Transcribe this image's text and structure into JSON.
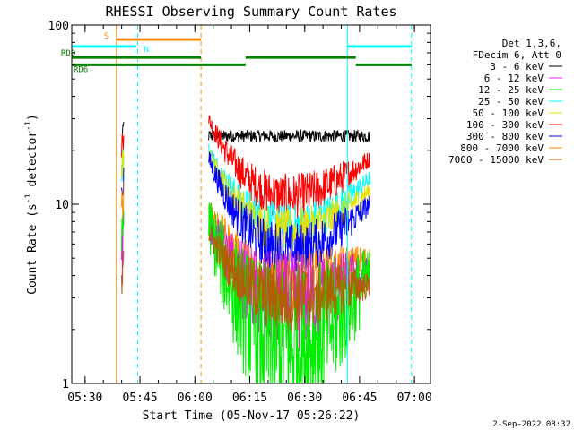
{
  "title": "RHESSI Observing Summary Count Rates",
  "footer_date": "2-Sep-2022 08:32",
  "chart_data": {
    "type": "line",
    "title": "RHESSI Observing Summary Count Rates",
    "ylabel": "Count Rate (s⁻¹ detector⁻¹)",
    "ylabel_parts": {
      "main": "Count Rate (s",
      "exp1": "-1",
      "mid": " detector",
      "exp2": "-1",
      "end": ")"
    },
    "xlabel": "Start Time (05-Nov-17 05:26:22)",
    "y_scale": "log",
    "ylim": [
      1,
      100
    ],
    "xlim_minutes": [
      0,
      98
    ],
    "y_ticks": [
      {
        "value": 1,
        "label": "1"
      },
      {
        "value": 10,
        "label": "10"
      },
      {
        "value": 100,
        "label": "100"
      }
    ],
    "x_ticks": [
      {
        "minute": 3.63,
        "label": "05:30"
      },
      {
        "minute": 18.63,
        "label": "05:45"
      },
      {
        "minute": 33.63,
        "label": "06:00"
      },
      {
        "minute": 48.63,
        "label": "06:15"
      },
      {
        "minute": 63.63,
        "label": "06:30"
      },
      {
        "minute": 78.63,
        "label": "06:45"
      },
      {
        "minute": 93.63,
        "label": "07:00"
      }
    ],
    "legend": {
      "position": "right",
      "header": [
        "Det 1,3,6,",
        "FDecim 6, Att 0"
      ],
      "entries": [
        {
          "label": "3 - 6 keV",
          "color": "#000000"
        },
        {
          "label": "6 - 12 keV",
          "color": "#e020e0"
        },
        {
          "label": "12 - 25 keV",
          "color": "#00ee00"
        },
        {
          "label": "25 - 50 keV",
          "color": "#00ffff"
        },
        {
          "label": "50 - 100 keV",
          "color": "#e8e000"
        },
        {
          "label": "100 - 300 keV",
          "color": "#ff0000"
        },
        {
          "label": "300 - 800 keV",
          "color": "#0000ff"
        },
        {
          "label": "800 - 7000 keV",
          "color": "#ff8c00"
        },
        {
          "label": "7000 - 15000 keV",
          "color": "#b06000"
        }
      ]
    },
    "series": [
      {
        "name": "3 - 6 keV",
        "color": "#000000",
        "ranges": [
          [
            13.6,
            14.2,
            22,
            28
          ],
          [
            37.4,
            81.5,
            24,
            24
          ]
        ],
        "noise": 0.08,
        "shape": "flat"
      },
      {
        "name": "100 - 300 keV",
        "color": "#ff0000",
        "ranges": [
          [
            13.6,
            14.2,
            20,
            26
          ],
          [
            37.4,
            81.5,
            30,
            18
          ]
        ],
        "noise": 0.1,
        "shape": "bowl",
        "min": 11
      },
      {
        "name": "25 - 50 keV",
        "color": "#00ffff",
        "ranges": [
          [
            13.6,
            14.2,
            16,
            18
          ],
          [
            37.4,
            81.5,
            20,
            14
          ]
        ],
        "noise": 0.1,
        "shape": "bowl",
        "min": 7.5
      },
      {
        "name": "50 - 100 keV",
        "color": "#e8e000",
        "ranges": [
          [
            13.6,
            14.2,
            14,
            17
          ],
          [
            37.4,
            81.5,
            19,
            12
          ]
        ],
        "noise": 0.1,
        "shape": "bowl",
        "min": 7
      },
      {
        "name": "300 - 800 keV",
        "color": "#0000ff",
        "ranges": [
          [
            13.6,
            14.2,
            12,
            15
          ],
          [
            37.4,
            81.5,
            18,
            10
          ]
        ],
        "noise": 0.12,
        "shape": "bowl",
        "min": 5.5
      },
      {
        "name": "800 - 7000 keV",
        "color": "#ff8c00",
        "ranges": [
          [
            13.6,
            14.2,
            9,
            12
          ],
          [
            37.4,
            81.5,
            10,
            5
          ]
        ],
        "noise": 0.14,
        "shape": "bowl",
        "min": 3.6
      },
      {
        "name": "6 - 12 keV",
        "color": "#e020e0",
        "ranges": [
          [
            13.6,
            14.2,
            5,
            8
          ],
          [
            37.4,
            81.5,
            8,
            4
          ]
        ],
        "noise": 0.22,
        "shape": "bowl",
        "min": 2.8
      },
      {
        "name": "12 - 25 keV",
        "color": "#00ee00",
        "ranges": [
          [
            13.6,
            14.2,
            6,
            9
          ],
          [
            37.4,
            81.5,
            8,
            4
          ]
        ],
        "noise": 0.35,
        "shape": "bowl",
        "min": 1.6
      },
      {
        "name": "7000 - 15000 keV",
        "color": "#b06000",
        "ranges": [
          [
            13.6,
            14.2,
            4,
            6
          ],
          [
            37.4,
            81.5,
            7,
            3.5
          ]
        ],
        "noise": 0.15,
        "shape": "bowl",
        "min": 3
      }
    ],
    "vertical_lines": [
      {
        "minute": 12.2,
        "color": "#ff8c00",
        "style": "solid"
      },
      {
        "minute": 18.0,
        "color": "#00ffff",
        "style": "dashed"
      },
      {
        "minute": 35.3,
        "color": "#ff8c00",
        "style": "dashed"
      },
      {
        "minute": 75.3,
        "color": "#00ffff",
        "style": "solid"
      },
      {
        "minute": 92.8,
        "color": "#00ffff",
        "style": "dashed"
      }
    ],
    "status_bars": [
      {
        "label": "S",
        "color": "#ff8c00",
        "level": 83,
        "segments": [
          [
            12.2,
            35.3
          ]
        ]
      },
      {
        "label": "N",
        "color": "#00ffff",
        "level": 76,
        "segments": [
          [
            0,
            17.6
          ],
          [
            75.3,
            92.8
          ]
        ]
      },
      {
        "label": "RD0",
        "color": "#008000",
        "level": 66,
        "segments": [
          [
            0,
            35.3
          ],
          [
            47.5,
            77.6
          ]
        ]
      },
      {
        "label": "RD6",
        "color": "#008000",
        "level": 60,
        "segments": [
          [
            0,
            35.3
          ],
          [
            35.3,
            47.5
          ],
          [
            77.6,
            92.8
          ]
        ]
      }
    ]
  }
}
